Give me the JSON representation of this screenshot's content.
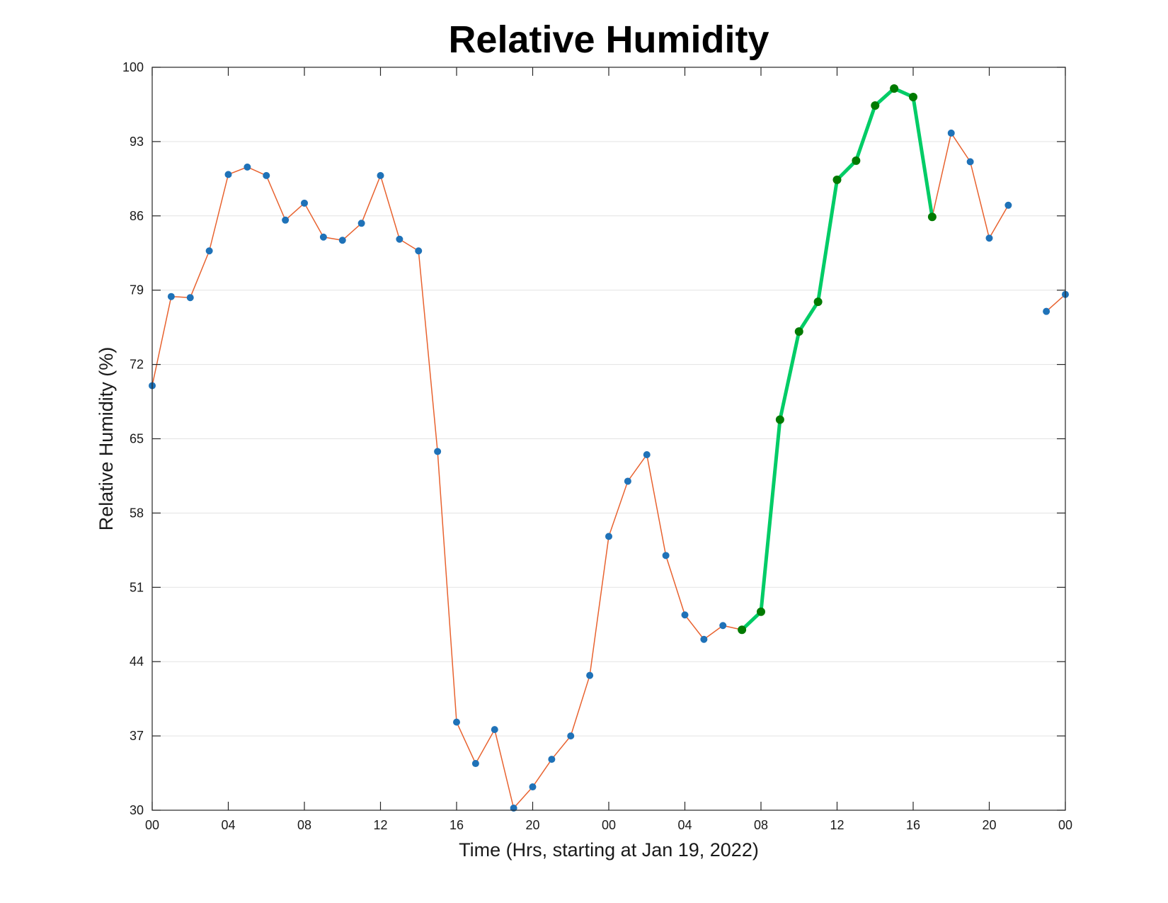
{
  "chart_data": {
    "type": "line",
    "title": "Relative Humidity",
    "xlabel": "Time (Hrs, starting at Jan 19, 2022)",
    "ylabel": "Relative Humidity (%)",
    "xlim": [
      0,
      48
    ],
    "ylim": [
      30,
      100
    ],
    "grid": {
      "y": true,
      "x": false
    },
    "yticks": [
      30,
      37,
      44,
      51,
      58,
      65,
      72,
      79,
      86,
      93,
      100
    ],
    "xticks": [
      {
        "x": 0,
        "label": "00"
      },
      {
        "x": 4,
        "label": "04"
      },
      {
        "x": 8,
        "label": "08"
      },
      {
        "x": 12,
        "label": "12"
      },
      {
        "x": 16,
        "label": "16"
      },
      {
        "x": 20,
        "label": "20"
      },
      {
        "x": 24,
        "label": "00"
      },
      {
        "x": 28,
        "label": "04"
      },
      {
        "x": 32,
        "label": "08"
      },
      {
        "x": 36,
        "label": "12"
      },
      {
        "x": 40,
        "label": "16"
      },
      {
        "x": 44,
        "label": "20"
      },
      {
        "x": 48,
        "label": "00"
      }
    ],
    "series": [
      {
        "color": "#e8622f",
        "marker_color": "#1f72b8",
        "segments": [
          [
            [
              0,
              70.0
            ],
            [
              1,
              78.4
            ],
            [
              2,
              78.3
            ],
            [
              3,
              82.7
            ],
            [
              4,
              89.9
            ],
            [
              5,
              90.6
            ],
            [
              6,
              89.8
            ],
            [
              7,
              85.6
            ],
            [
              8,
              87.2
            ],
            [
              9,
              84.0
            ],
            [
              10,
              83.7
            ],
            [
              11,
              85.3
            ],
            [
              12,
              89.8
            ],
            [
              13,
              83.8
            ],
            [
              14,
              82.7
            ],
            [
              15,
              63.8
            ],
            [
              16,
              38.3
            ],
            [
              17,
              34.4
            ],
            [
              18,
              37.6
            ],
            [
              19,
              30.2
            ],
            [
              20,
              32.2
            ],
            [
              21,
              34.8
            ],
            [
              22,
              37.0
            ],
            [
              23,
              42.7
            ],
            [
              24,
              55.8
            ],
            [
              25,
              61.0
            ],
            [
              26,
              63.5
            ],
            [
              27,
              54.0
            ],
            [
              28,
              48.4
            ],
            [
              29,
              46.1
            ],
            [
              30,
              47.4
            ],
            [
              31,
              47.0
            ],
            [
              32,
              48.7
            ],
            [
              33,
              66.8
            ],
            [
              34,
              75.1
            ],
            [
              35,
              77.9
            ],
            [
              36,
              89.4
            ],
            [
              37,
              91.2
            ],
            [
              38,
              96.4
            ],
            [
              39,
              98.0
            ],
            [
              40,
              97.2
            ],
            [
              41,
              85.9
            ],
            [
              42,
              93.8
            ],
            [
              43,
              91.1
            ],
            [
              44,
              83.9
            ],
            [
              45,
              87.0
            ]
          ],
          [
            [
              47,
              77.0
            ],
            [
              48,
              78.6
            ]
          ]
        ]
      },
      {
        "color": "#00cc66",
        "marker_color": "#007a00",
        "segments": [
          [
            [
              31,
              47.0
            ],
            [
              32,
              48.7
            ],
            [
              33,
              66.8
            ],
            [
              34,
              75.1
            ],
            [
              35,
              77.9
            ],
            [
              36,
              89.4
            ],
            [
              37,
              91.2
            ],
            [
              38,
              96.4
            ],
            [
              39,
              98.0
            ],
            [
              40,
              97.2
            ],
            [
              41,
              85.9
            ]
          ]
        ]
      }
    ]
  }
}
